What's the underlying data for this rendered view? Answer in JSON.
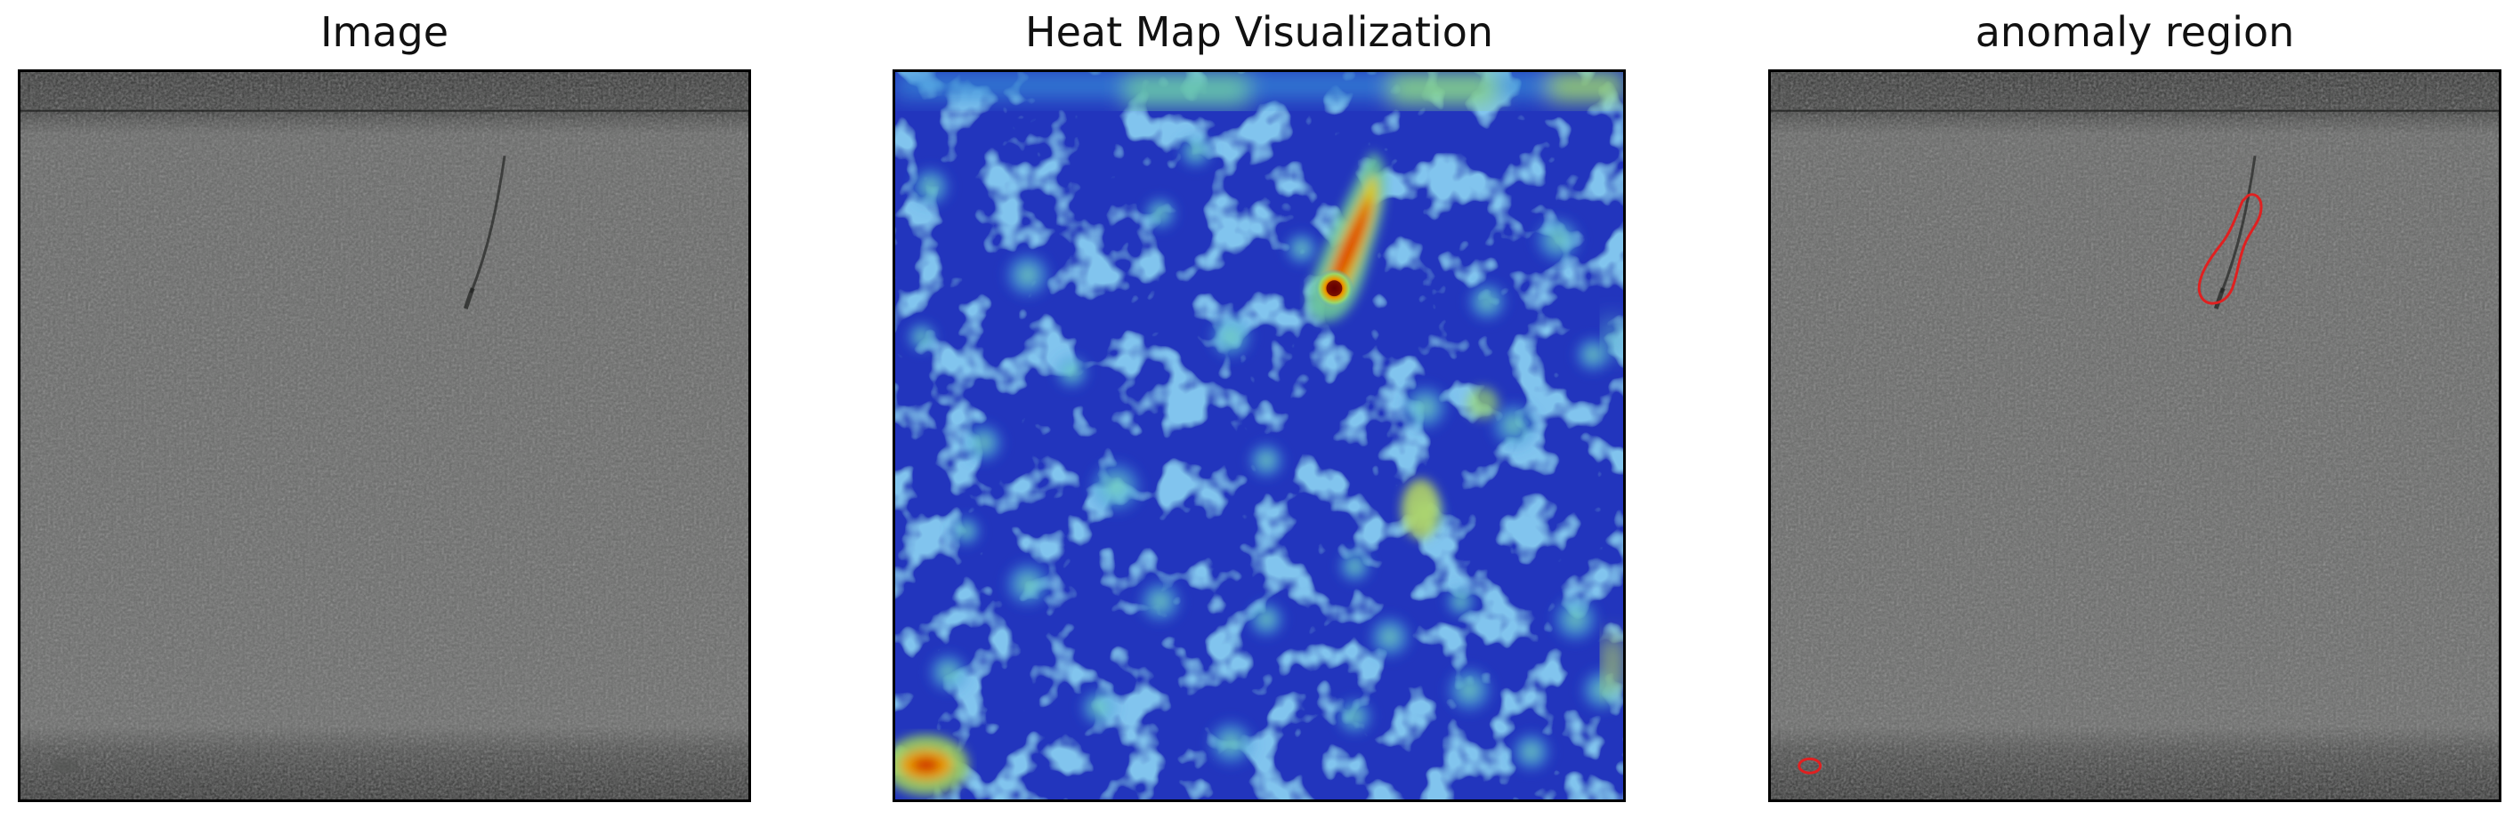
{
  "panels": [
    {
      "title": "Image"
    },
    {
      "title": "Heat Map Visualization"
    },
    {
      "title": "anomaly region"
    }
  ],
  "colors": {
    "surface_gray": "#6b6c6b",
    "dark_band": "#3a3b3a",
    "heat_low": "#1f2fc0",
    "heat_mid": "#48c8b0",
    "heat_high": "#e8c800",
    "heat_peak": "#b80000",
    "contour": "#e02020"
  }
}
